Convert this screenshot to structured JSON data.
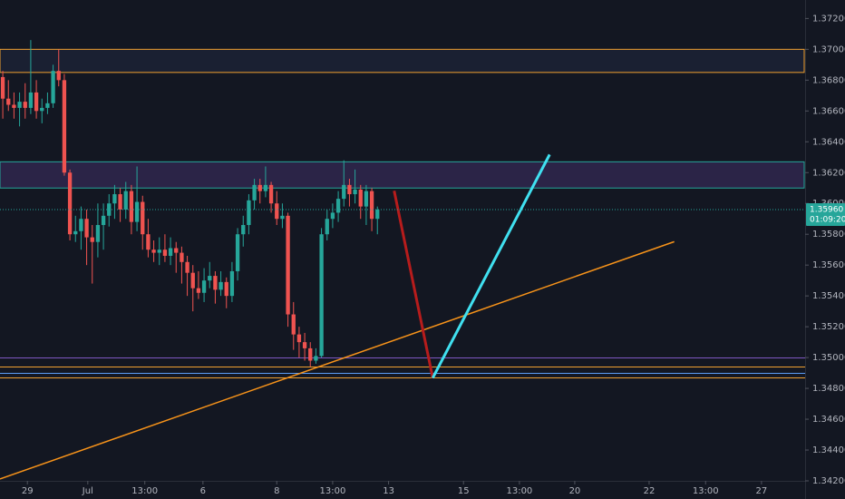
{
  "chart_data": {
    "type": "candlestick",
    "up_color": "#26a69a",
    "down_color": "#ef5350",
    "xlim": [
      -0.5,
      143.5
    ],
    "ylim": [
      1.342,
      1.3732
    ],
    "yticks": [
      {
        "value": 1.372,
        "label": "1.37200"
      },
      {
        "value": 1.37,
        "label": "1.37000"
      },
      {
        "value": 1.368,
        "label": "1.36800"
      },
      {
        "value": 1.366,
        "label": "1.36600"
      },
      {
        "value": 1.364,
        "label": "1.36400"
      },
      {
        "value": 1.362,
        "label": "1.36200"
      },
      {
        "value": 1.36,
        "label": "1.36000"
      },
      {
        "value": 1.358,
        "label": "1.35800"
      },
      {
        "value": 1.356,
        "label": "1.35600"
      },
      {
        "value": 1.354,
        "label": "1.35400"
      },
      {
        "value": 1.352,
        "label": "1.35200"
      },
      {
        "value": 1.35,
        "label": "1.35000"
      },
      {
        "value": 1.348,
        "label": "1.34800"
      },
      {
        "value": 1.346,
        "label": "1.34600"
      },
      {
        "value": 1.344,
        "label": "1.34400"
      },
      {
        "value": 1.342,
        "label": "1.34200"
      }
    ],
    "xticks": [
      {
        "value": 4.4,
        "label": "29"
      },
      {
        "value": 15.2,
        "label": "Jul"
      },
      {
        "value": 25.4,
        "label": "13:00"
      },
      {
        "value": 35.8,
        "label": "6"
      },
      {
        "value": 49,
        "label": "8"
      },
      {
        "value": 59,
        "label": "13:00"
      },
      {
        "value": 69,
        "label": "13"
      },
      {
        "value": 82.4,
        "label": "15"
      },
      {
        "value": 92.4,
        "label": "13:00"
      },
      {
        "value": 102.3,
        "label": "20"
      },
      {
        "value": 115.6,
        "label": "22"
      },
      {
        "value": 125.7,
        "label": "13:00"
      },
      {
        "value": 135.7,
        "label": "27"
      }
    ],
    "open": [
      1.3682,
      1.3668,
      1.3664,
      1.3662,
      1.3666,
      1.3662,
      1.3672,
      1.366,
      1.3662,
      1.3665,
      1.3686,
      1.368,
      1.362,
      1.358,
      1.3582,
      1.359,
      1.3578,
      1.3575,
      1.3586,
      1.3592,
      1.36,
      1.3606,
      1.3596,
      1.3608,
      1.3588,
      1.3601,
      1.358,
      1.357,
      1.3568,
      1.357,
      1.3566,
      1.3571,
      1.3568,
      1.3562,
      1.3555,
      1.3545,
      1.3542,
      1.355,
      1.3553,
      1.3544,
      1.3549,
      1.354,
      1.3556,
      1.358,
      1.3586,
      1.3602,
      1.3612,
      1.3608,
      1.3612,
      1.36,
      1.359,
      1.3592,
      1.3528,
      1.3515,
      1.351,
      1.3506,
      1.3498,
      1.3501,
      1.358,
      1.359,
      1.3594,
      1.3603,
      1.3612,
      1.3606,
      1.3609,
      1.3598,
      1.3608,
      1.359
    ],
    "high": [
      1.3686,
      1.368,
      1.3672,
      1.3672,
      1.3678,
      1.3706,
      1.368,
      1.3668,
      1.3672,
      1.369,
      1.37,
      1.3684,
      1.3622,
      1.3592,
      1.3598,
      1.3596,
      1.3586,
      1.36,
      1.36,
      1.3606,
      1.3612,
      1.361,
      1.3614,
      1.3612,
      1.3624,
      1.3605,
      1.359,
      1.3576,
      1.3578,
      1.358,
      1.3578,
      1.3575,
      1.3572,
      1.3566,
      1.356,
      1.3556,
      1.3558,
      1.3562,
      1.3556,
      1.3556,
      1.3552,
      1.3562,
      1.3584,
      1.3592,
      1.3606,
      1.3616,
      1.3616,
      1.3624,
      1.3614,
      1.3608,
      1.36,
      1.3594,
      1.3536,
      1.352,
      1.3516,
      1.351,
      1.3506,
      1.3584,
      1.3596,
      1.36,
      1.3608,
      1.3628,
      1.3616,
      1.3622,
      1.3612,
      1.3612,
      1.361,
      1.3598
    ],
    "low": [
      1.3655,
      1.366,
      1.3655,
      1.365,
      1.3655,
      1.3658,
      1.3655,
      1.3652,
      1.3658,
      1.3662,
      1.3676,
      1.3618,
      1.3576,
      1.3575,
      1.357,
      1.356,
      1.3548,
      1.3565,
      1.357,
      1.3585,
      1.359,
      1.3588,
      1.359,
      1.358,
      1.3582,
      1.357,
      1.3565,
      1.3562,
      1.356,
      1.3562,
      1.356,
      1.3555,
      1.3548,
      1.354,
      1.353,
      1.3538,
      1.3536,
      1.3545,
      1.3535,
      1.354,
      1.3532,
      1.3536,
      1.355,
      1.3572,
      1.358,
      1.3596,
      1.36,
      1.3604,
      1.3594,
      1.3586,
      1.3584,
      1.352,
      1.3505,
      1.35,
      1.3498,
      1.3494,
      1.3496,
      1.35,
      1.3576,
      1.3584,
      1.3588,
      1.3598,
      1.3598,
      1.36,
      1.359,
      1.3586,
      1.3582,
      1.358
    ],
    "close": [
      1.3668,
      1.3664,
      1.3662,
      1.3666,
      1.3662,
      1.3672,
      1.366,
      1.3662,
      1.3665,
      1.3686,
      1.368,
      1.362,
      1.358,
      1.3582,
      1.359,
      1.3578,
      1.3575,
      1.3586,
      1.3592,
      1.36,
      1.3606,
      1.3596,
      1.3608,
      1.3588,
      1.3601,
      1.358,
      1.357,
      1.3568,
      1.357,
      1.3566,
      1.3571,
      1.3568,
      1.3562,
      1.3555,
      1.3545,
      1.3542,
      1.355,
      1.3553,
      1.3544,
      1.3549,
      1.354,
      1.3556,
      1.358,
      1.3586,
      1.3602,
      1.3612,
      1.3608,
      1.3612,
      1.36,
      1.359,
      1.3592,
      1.3528,
      1.3515,
      1.351,
      1.3506,
      1.3498,
      1.3501,
      1.358,
      1.359,
      1.3594,
      1.3603,
      1.3612,
      1.3606,
      1.3609,
      1.3598,
      1.3608,
      1.359,
      1.3596
    ],
    "boxes": [
      {
        "y": [
          1.37,
          1.3685
        ],
        "color": "#f0a030",
        "fill": "rgba(40,50,80,0.35)"
      },
      {
        "y": [
          1.3627,
          1.361
        ],
        "color": "#26a69a",
        "fill": "rgba(90,60,140,0.35)"
      }
    ],
    "hlines": [
      {
        "value": 1.35,
        "color": "#7e57c2"
      },
      {
        "value": 1.3494,
        "color": "#f0a030"
      },
      {
        "value": 1.349,
        "color": "#5b9cf6"
      },
      {
        "value": 1.3487,
        "color": "#f0a030"
      }
    ],
    "trend_lines": [
      {
        "x": [
          -0.5,
          120.1
        ],
        "y": [
          1.34212,
          1.35752
        ],
        "color": "#f7931a",
        "width": 1.5
      },
      {
        "x": [
          70.0,
          76.9
        ],
        "y": [
          1.36082,
          1.34868
        ],
        "color": "#b71c1c",
        "width": 3
      },
      {
        "x": [
          76.9,
          97.8
        ],
        "y": [
          1.34868,
          1.36317
        ],
        "color": "#40e0f0",
        "width": 3
      }
    ],
    "last_price": 1.3596,
    "last_label": "1.35960",
    "countdown": "01:09:20"
  }
}
